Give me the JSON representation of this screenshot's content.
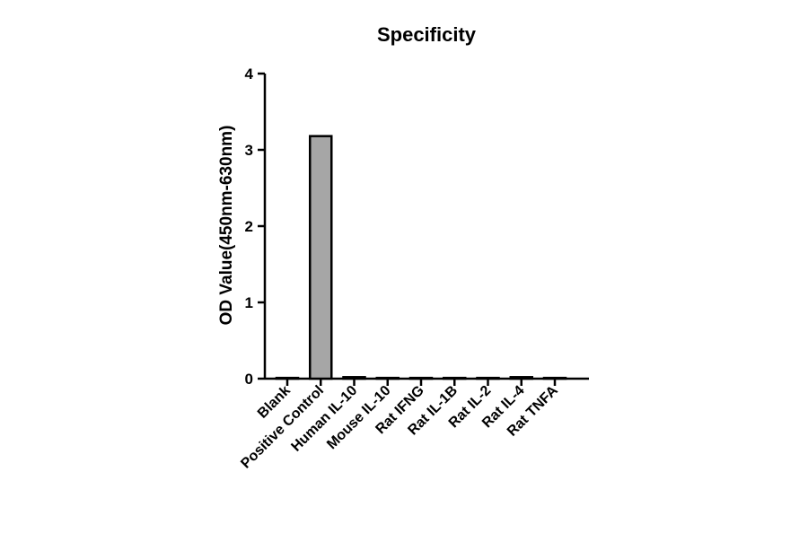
{
  "chart_data": {
    "type": "bar",
    "title": "Specificity",
    "xlabel": "",
    "ylabel": "OD Value(450nm-630nm)",
    "ylim": [
      0,
      4
    ],
    "yticks": [
      0,
      1,
      2,
      3,
      4
    ],
    "categories": [
      "Blank",
      "Positive Control",
      "Human IL-10",
      "Mouse IL-10",
      "Rat IFNG",
      "Rat IL-1B",
      "Rat IL-2",
      "Rat IL-4",
      "Rat TNFA"
    ],
    "values": [
      0.01,
      3.18,
      0.02,
      0.01,
      0.01,
      0.01,
      0.01,
      0.02,
      0.01
    ],
    "bar_color": "#a6a6a6",
    "edge_color": "#000000",
    "grid": false,
    "legend": "none"
  }
}
